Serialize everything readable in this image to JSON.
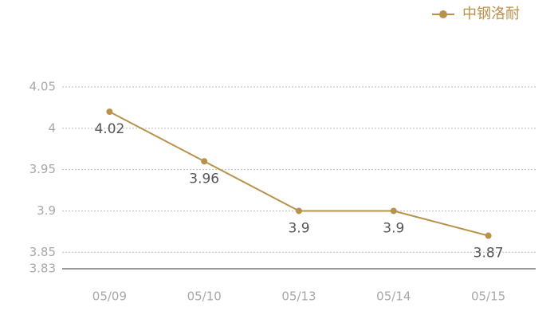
{
  "chart_data": {
    "type": "line",
    "categories": [
      "05/09",
      "05/10",
      "05/13",
      "05/14",
      "05/15"
    ],
    "series": [
      {
        "name": "中钢洛耐",
        "color": "#b8924a",
        "values": [
          4.02,
          3.96,
          3.9,
          3.9,
          3.87
        ]
      }
    ],
    "ylim": [
      3.83,
      4.05
    ],
    "yticks": [
      3.83,
      3.85,
      3.9,
      3.95,
      4,
      4.05
    ],
    "grid": true,
    "legend": "top-right"
  }
}
